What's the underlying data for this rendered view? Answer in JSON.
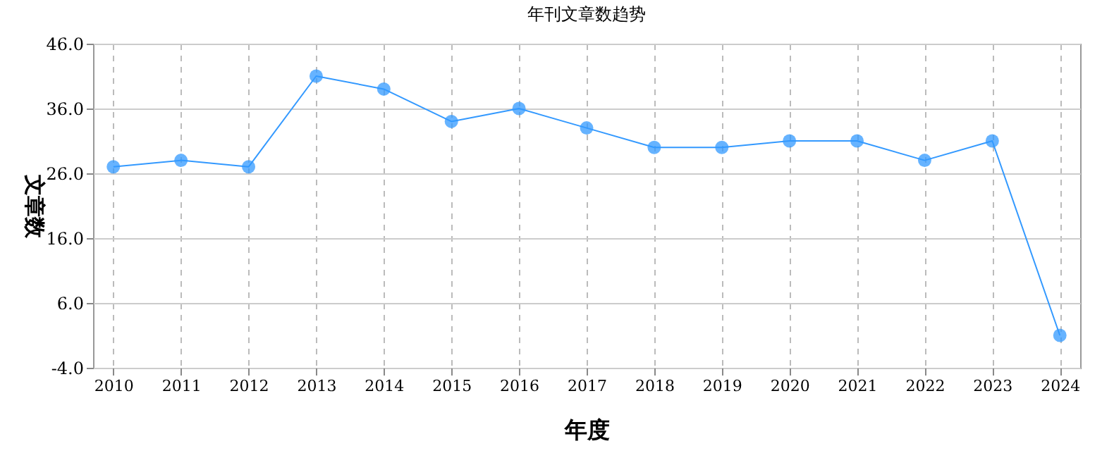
{
  "chart_data": {
    "type": "line",
    "title": "年刊文章数趋势",
    "xlabel": "年度",
    "ylabel": "文章数",
    "categories": [
      "2010",
      "2011",
      "2012",
      "2013",
      "2014",
      "2015",
      "2016",
      "2017",
      "2018",
      "2019",
      "2020",
      "2021",
      "2022",
      "2023",
      "2024"
    ],
    "series": [
      {
        "color": "#3399ff",
        "values": [
          27,
          28,
          27,
          41,
          39,
          34,
          36,
          33,
          30,
          30,
          31,
          31,
          28,
          31,
          1
        ]
      }
    ],
    "ylim": [
      -4,
      46
    ],
    "yticks": [
      {
        "value": -4,
        "label": "-4.0"
      },
      {
        "value": 6,
        "label": "6.0"
      },
      {
        "value": 16,
        "label": "16.0"
      },
      {
        "value": 26,
        "label": "26.0"
      },
      {
        "value": 36,
        "label": "36.0"
      },
      {
        "value": 46,
        "label": "46.0"
      }
    ],
    "grid": true,
    "marker": "circle",
    "line_style": "solid"
  }
}
